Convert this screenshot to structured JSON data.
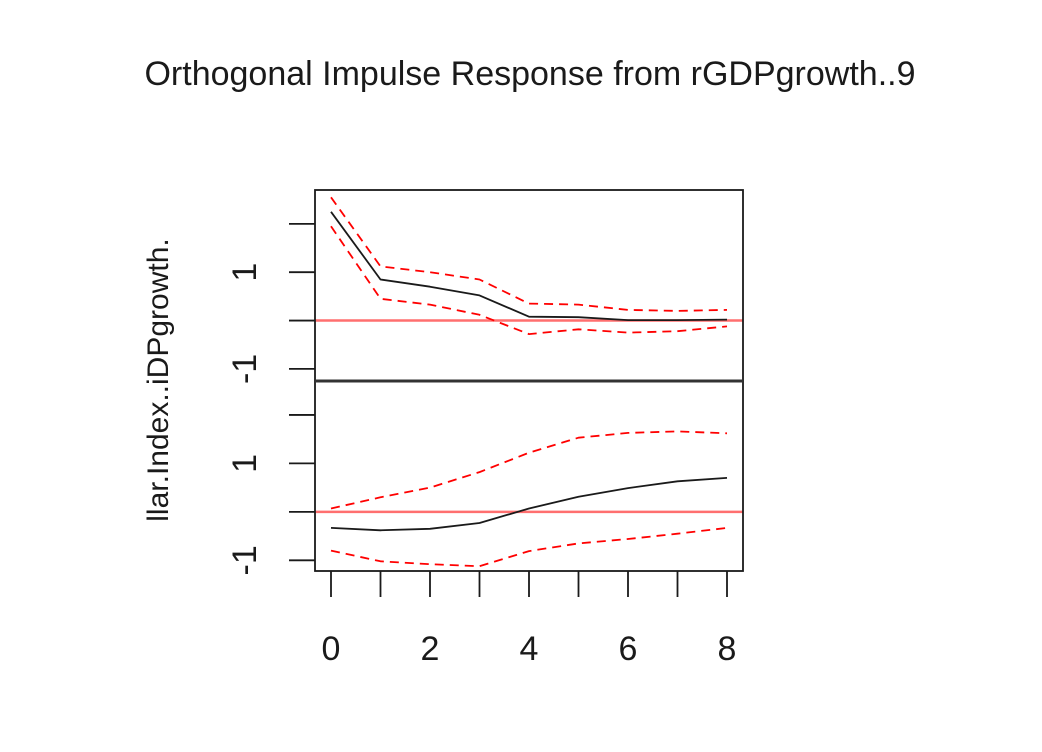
{
  "chart_data": {
    "type": "line",
    "title": "Orthogonal Impulse Response from rGDPgrowth..9",
    "ylabel": "llar.Index..iDPgrowth.",
    "x": [
      0,
      1,
      2,
      3,
      4,
      5,
      6,
      7,
      8
    ],
    "xlim": [
      0,
      8
    ],
    "x_ticks": [
      "0",
      "2",
      "4",
      "6",
      "8"
    ],
    "grid": false,
    "legend": "none",
    "colors": {
      "response": "#1a1a1a",
      "ci": "#ff0000",
      "zero_line": "#ff6f6f",
      "frame": "#1a1a1a"
    },
    "panels": [
      {
        "ylim": [
          -1.25,
          2.7
        ],
        "y_ticks": [
          "1",
          "-1"
        ],
        "y_tick_values": [
          1,
          -1
        ],
        "y_minor_ticks": [
          2,
          0
        ],
        "zero_line": 0,
        "series": [
          {
            "role": "response",
            "style": "solid",
            "values": [
              2.25,
              0.85,
              0.7,
              0.52,
              0.08,
              0.07,
              0.01,
              0.01,
              0.02
            ]
          },
          {
            "role": "upper",
            "style": "dashed",
            "values": [
              2.55,
              1.12,
              1.0,
              0.85,
              0.35,
              0.33,
              0.22,
              0.2,
              0.22
            ]
          },
          {
            "role": "lower",
            "style": "dashed",
            "values": [
              1.95,
              0.45,
              0.33,
              0.12,
              -0.28,
              -0.18,
              -0.25,
              -0.22,
              -0.12
            ]
          }
        ]
      },
      {
        "ylim": [
          -1.22,
          2.7
        ],
        "y_ticks": [
          "1",
          "-1"
        ],
        "y_tick_values": [
          1,
          -1
        ],
        "y_minor_ticks": [
          2,
          0
        ],
        "zero_line": 0,
        "series": [
          {
            "role": "response",
            "style": "solid",
            "values": [
              -0.33,
              -0.38,
              -0.35,
              -0.23,
              0.07,
              0.31,
              0.49,
              0.63,
              0.7
            ]
          },
          {
            "role": "upper",
            "style": "dashed",
            "values": [
              0.07,
              0.3,
              0.5,
              0.82,
              1.22,
              1.53,
              1.63,
              1.66,
              1.62
            ]
          },
          {
            "role": "lower",
            "style": "dashed",
            "values": [
              -0.8,
              -1.02,
              -1.08,
              -1.12,
              -0.81,
              -0.65,
              -0.56,
              -0.45,
              -0.33
            ]
          }
        ]
      }
    ]
  }
}
